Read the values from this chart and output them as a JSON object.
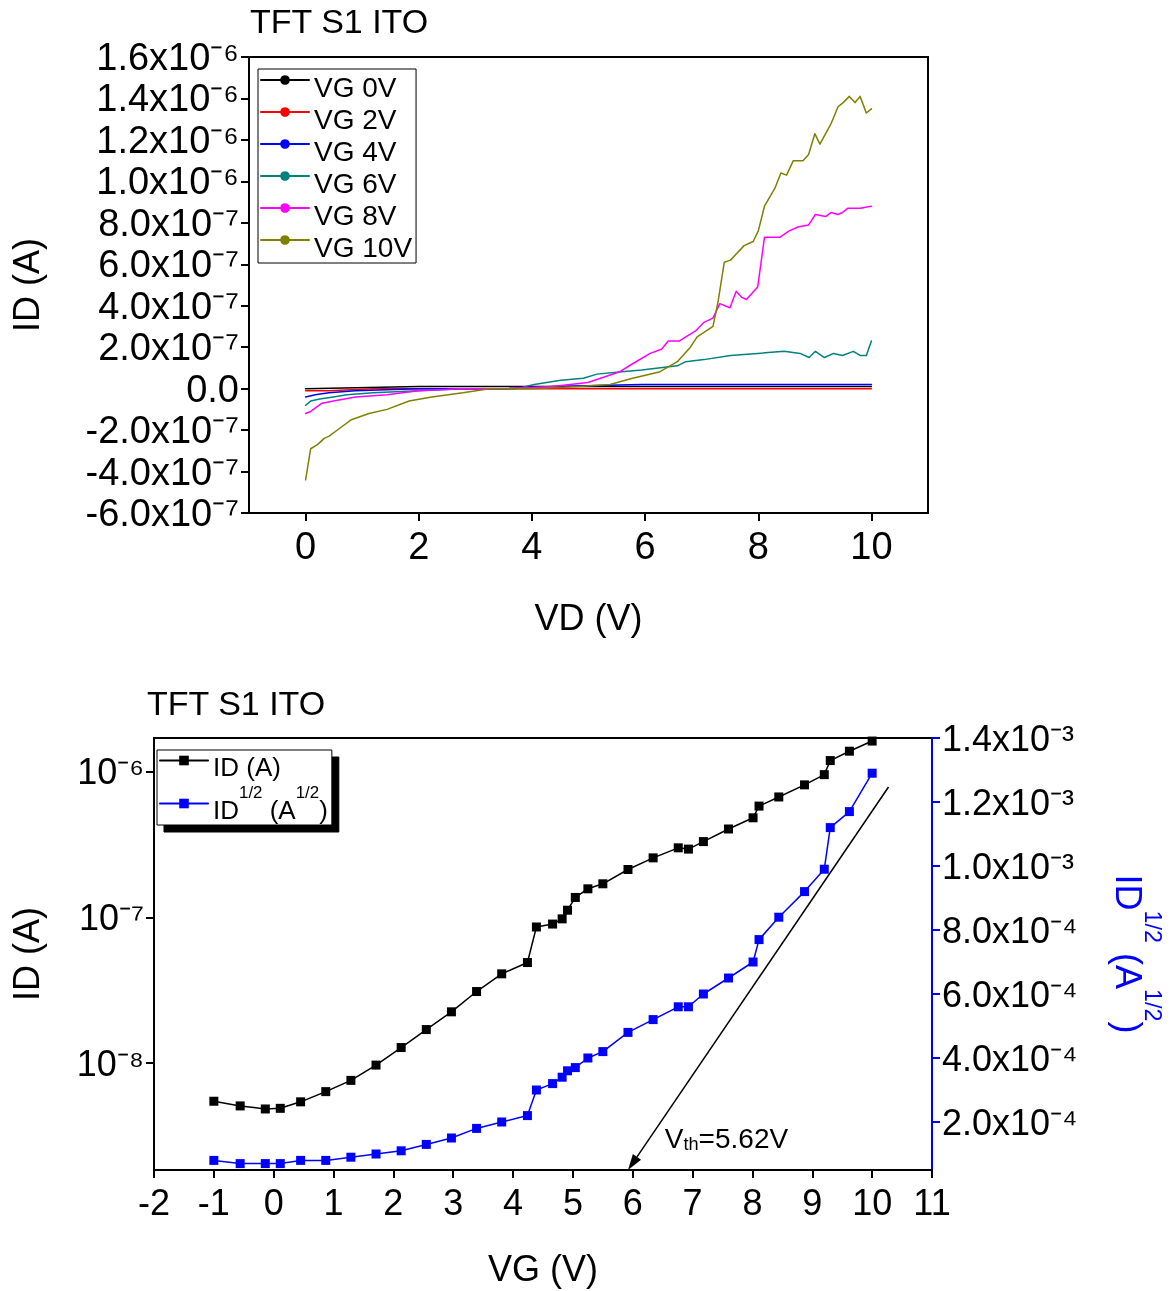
{
  "chart_data": [
    {
      "type": "line",
      "title": "TFT S1 ITO",
      "xlabel": "VD (V)",
      "ylabel": "ID (A)",
      "xlim": [
        -1,
        11
      ],
      "xticks": [
        0,
        2,
        4,
        6,
        8,
        10
      ],
      "ylim": [
        -6e-07,
        1.6e-06
      ],
      "yticks": [
        {
          "value": -6e-07,
          "label": "-6.0x10⁻⁷"
        },
        {
          "value": -4e-07,
          "label": "-4.0x10⁻⁷"
        },
        {
          "value": -2e-07,
          "label": "-2.0x10⁻⁷"
        },
        {
          "value": 0,
          "label": "0.0"
        },
        {
          "value": 2e-07,
          "label": "2.0x10⁻⁷"
        },
        {
          "value": 4e-07,
          "label": "4.0x10⁻⁷"
        },
        {
          "value": 6e-07,
          "label": "6.0x10⁻⁷"
        },
        {
          "value": 8e-07,
          "label": "8.0x10⁻⁷"
        },
        {
          "value": 1e-06,
          "label": "1.0x10⁻⁶"
        },
        {
          "value": 1.2e-06,
          "label": "1.2x10⁻⁶"
        },
        {
          "value": 1.4e-06,
          "label": "1.4x10⁻⁶"
        },
        {
          "value": 1.6e-06,
          "label": "1.6x10⁻⁶"
        }
      ],
      "legend": "top left",
      "marker": "none",
      "series": [
        {
          "name": "VG 0V",
          "color": "#000000",
          "x": [
            0,
            2,
            4,
            6,
            8,
            10
          ],
          "values": [
            0,
            1e-08,
            1e-08,
            1e-08,
            1e-08,
            1e-08
          ]
        },
        {
          "name": "VG 2V",
          "color": "#ff0000",
          "x": [
            0,
            0.41,
            1.2,
            2.78,
            4,
            6,
            8,
            10
          ],
          "values": [
            -1e-08,
            -1e-08,
            0,
            0,
            0,
            0,
            0,
            0
          ]
        },
        {
          "name": "VG 4V",
          "color": "#0000ff",
          "x": [
            0,
            0.17,
            0.41,
            0.88,
            1.99,
            3.57,
            4.36,
            5.94,
            6.72,
            10
          ],
          "values": [
            -4e-08,
            -3e-08,
            -2e-08,
            -1e-08,
            0,
            0,
            1e-08,
            2e-08,
            2e-08,
            2e-08
          ]
        },
        {
          "name": "VG 6V",
          "color": "#008080",
          "x": [
            0,
            0.09,
            0.25,
            0.49,
            0.73,
            1.2,
            1.99,
            2.78,
            3.73,
            4.04,
            4.51,
            4.91,
            5.15,
            5.54,
            5.94,
            6.57,
            6.72,
            7.04,
            7.51,
            7.99,
            8.46,
            8.74,
            8.9,
            9.01,
            9.17,
            9.33,
            9.49,
            9.68,
            9.8,
            9.91,
            10
          ],
          "values": [
            -8e-08,
            -6e-08,
            -5e-08,
            -4e-08,
            -3e-08,
            -2e-08,
            -1e-08,
            0,
            0,
            2e-08,
            4e-08,
            5e-08,
            7e-08,
            8e-08,
            9e-08,
            1.1e-07,
            1.3e-07,
            1.4e-07,
            1.6e-07,
            1.7e-07,
            1.8e-07,
            1.7e-07,
            1.5e-07,
            1.8e-07,
            1.5e-07,
            1.7e-07,
            1.6e-07,
            1.8e-07,
            1.6e-07,
            1.6e-07,
            2.3e-07
          ]
        },
        {
          "name": "VG 8V",
          "color": "#ff00ff",
          "x": [
            0,
            0.09,
            0.29,
            0.49,
            0.88,
            1.44,
            1.99,
            2.78,
            3.57,
            4.36,
            4.99,
            5.54,
            5.78,
            6.09,
            6.29,
            6.41,
            6.61,
            6.72,
            6.9,
            7.04,
            7.2,
            7.32,
            7.5,
            7.61,
            7.71,
            7.79,
            7.99,
            8.11,
            8.38,
            8.54,
            8.7,
            8.89,
            9.01,
            9.19,
            9.29,
            9.41,
            9.49,
            9.58,
            9.8,
            10
          ],
          "values": [
            -1.2e-07,
            -1.1e-07,
            -7e-08,
            -6e-08,
            -4e-08,
            -3e-08,
            -1e-08,
            0,
            0,
            1e-08,
            3e-08,
            8e-08,
            1.2e-07,
            1.7e-07,
            1.9e-07,
            2.3e-07,
            2.3e-07,
            2.5e-07,
            2.8e-07,
            3.2e-07,
            3.4e-07,
            4.1e-07,
            3.9e-07,
            4.7e-07,
            4.4e-07,
            4.3e-07,
            4.9e-07,
            7.3e-07,
            7.3e-07,
            7.6e-07,
            7.8e-07,
            7.9e-07,
            8.4e-07,
            8.3e-07,
            8.5e-07,
            8.4e-07,
            8.5e-07,
            8.7e-07,
            8.7e-07,
            8.8e-07
          ]
        },
        {
          "name": "VG 10V",
          "color": "#808000",
          "x": [
            0,
            0.09,
            0.21,
            0.33,
            0.41,
            0.61,
            0.81,
            1.12,
            1.44,
            1.83,
            2.23,
            2.78,
            3.25,
            4,
            4.83,
            5.38,
            5.78,
            6.25,
            6.57,
            6.8,
            6.92,
            7.2,
            7.29,
            7.4,
            7.51,
            7.75,
            7.91,
            8,
            8.11,
            8.3,
            8.4,
            8.5,
            8.62,
            8.79,
            8.89,
            9,
            9.09,
            9.29,
            9.41,
            9.5,
            9.61,
            9.71,
            9.8,
            9.91,
            10
          ],
          "values": [
            -4.4e-07,
            -2.9e-07,
            -2.7e-07,
            -2.4e-07,
            -2.3e-07,
            -1.9e-07,
            -1.5e-07,
            -1.2e-07,
            -1e-07,
            -6e-08,
            -4e-08,
            -2e-08,
            0,
            0,
            1e-08,
            2e-08,
            5e-08,
            8e-08,
            1.3e-07,
            2e-07,
            2.5e-07,
            3e-07,
            4.2e-07,
            6.1e-07,
            6.2e-07,
            6.9e-07,
            7.1e-07,
            7.6e-07,
            8.8e-07,
            9.7e-07,
            1.04e-06,
            1.03e-06,
            1.1e-06,
            1.1e-06,
            1.13e-06,
            1.23e-06,
            1.18e-06,
            1.28e-06,
            1.36e-06,
            1.38e-06,
            1.41e-06,
            1.38e-06,
            1.41e-06,
            1.33e-06,
            1.35e-06
          ]
        }
      ]
    },
    {
      "type": "line",
      "title": "TFT S1 ITO",
      "xlabel": "VG (V)",
      "ylabel": "ID (A)",
      "y2label": "ID$^{1/2}$ (A$^{1/2}$)",
      "xlim": [
        -2,
        11
      ],
      "xticks": [
        -2,
        -1,
        0,
        1,
        2,
        3,
        4,
        5,
        6,
        7,
        8,
        9,
        10,
        11
      ],
      "log": "y",
      "ylim": [
        1.85e-09,
        1.7e-06
      ],
      "yticks": [
        {
          "value": 1e-08,
          "label": "10⁻⁸"
        },
        {
          "value": 1e-07,
          "label": "10⁻⁷"
        },
        {
          "value": 1e-06,
          "label": "10⁻⁶"
        }
      ],
      "y2lim": [
        5e-05,
        0.0014
      ],
      "y2ticks": [
        {
          "value": 0.0002,
          "label": "2.0x10⁻⁴"
        },
        {
          "value": 0.0004,
          "label": "4.0x10⁻⁴"
        },
        {
          "value": 0.0006,
          "label": "6.0x10⁻⁴"
        },
        {
          "value": 0.0008,
          "label": "8.0x10⁻⁴"
        },
        {
          "value": 0.001,
          "label": "1.0x10⁻³"
        },
        {
          "value": 0.0012,
          "label": "1.2x10⁻³"
        },
        {
          "value": 0.0014,
          "label": "1.4x10⁻³"
        }
      ],
      "legend": "top left",
      "marker": "square",
      "annotations": [
        "V$_{th}$=5.62V"
      ],
      "x": [
        -1,
        -0.56,
        -0.14,
        0.11,
        0.45,
        0.87,
        1.29,
        1.71,
        2.13,
        2.55,
        2.97,
        3.39,
        3.81,
        4.24,
        4.39,
        4.66,
        4.82,
        4.91,
        5.04,
        5.25,
        5.5,
        5.92,
        6.34,
        6.76,
        6.93,
        7.18,
        7.6,
        8.01,
        8.11,
        8.44,
        8.87,
        9.2,
        9.3,
        9.62,
        10
      ],
      "series": [
        {
          "name": "ID (A)",
          "color": "#000000",
          "values": [
            5.48e-09,
            5.09e-09,
            4.85e-09,
            4.9e-09,
            5.43e-09,
            6.38e-09,
            7.62e-09,
            9.7e-09,
            1.28e-08,
            1.7e-08,
            2.25e-08,
            3.1e-08,
            4.1e-08,
            4.9e-08,
            8.59e-08,
            9e-08,
            9.77e-08,
            1.12e-07,
            1.37e-07,
            1.57e-07,
            1.7e-07,
            2.13e-07,
            2.56e-07,
            3e-07,
            2.94e-07,
            3.31e-07,
            4.04e-07,
            4.82e-07,
            5.8e-07,
            6.7e-07,
            8.11e-07,
            9.53e-07,
            1.19e-06,
            1.38e-06,
            1.62e-06
          ]
        },
        {
          "name": "ID$^{1/2}$ (A$^{1/2}$)",
          "color": "#0000ff",
          "axis": "y2",
          "values": [
            8e-05,
            7e-05,
            7e-05,
            7e-05,
            8e-05,
            8e-05,
            9e-05,
            0.0001,
            0.00011,
            0.00013,
            0.00015,
            0.00018,
            0.0002,
            0.00022,
            0.0003,
            0.00032,
            0.00034,
            0.00036,
            0.00037,
            0.0004,
            0.00042,
            0.00048,
            0.00052,
            0.00056,
            0.00056,
            0.0006,
            0.00065,
            0.0007,
            0.00077,
            0.00084,
            0.00092,
            0.00099,
            0.00112,
            0.00117,
            0.00129
          ]
        }
      ]
    }
  ]
}
